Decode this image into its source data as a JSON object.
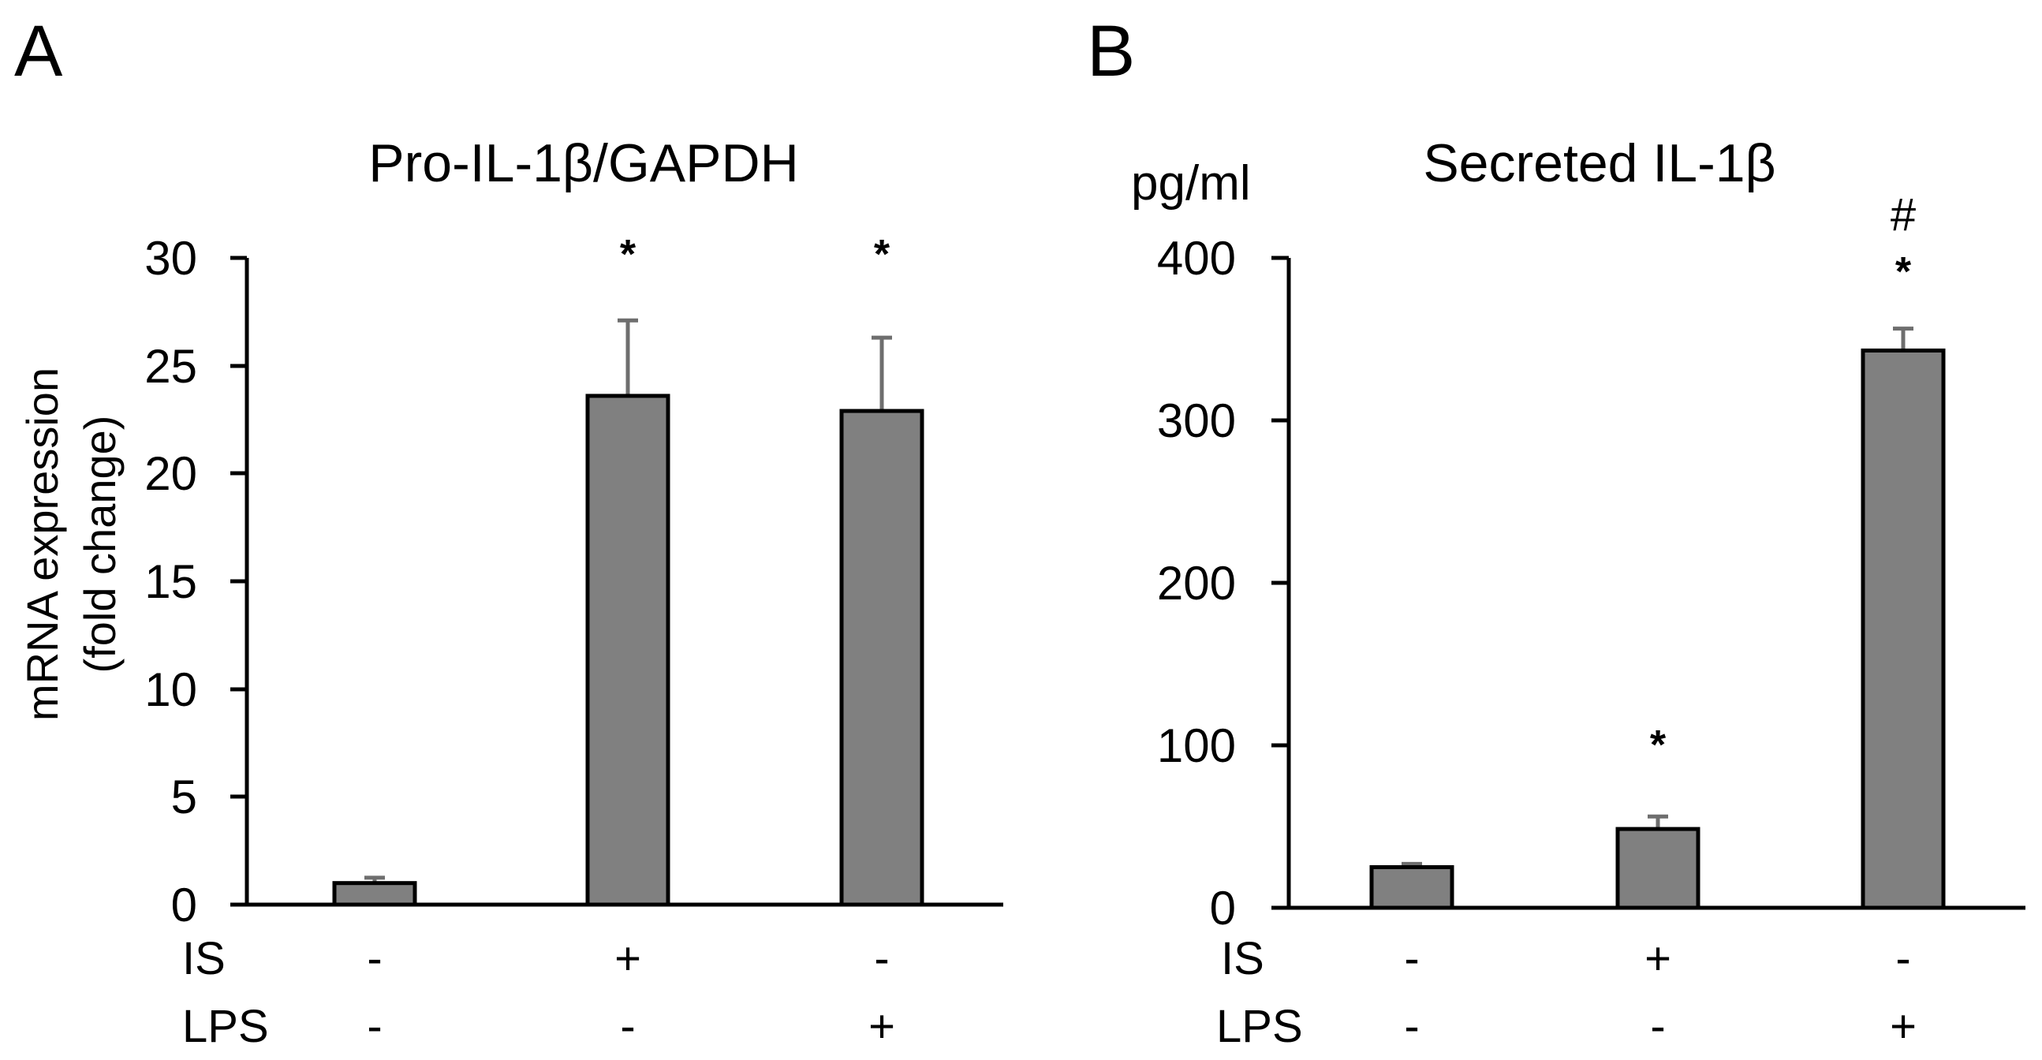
{
  "panels": [
    {
      "letter": "A",
      "title": "Pro-IL-1β/GAPDH",
      "ylabel_line1": "mRNA expression",
      "ylabel_line2": "(fold change)",
      "unit": "",
      "yticks": [
        "0",
        "5",
        "10",
        "15",
        "20",
        "25",
        "30"
      ],
      "row_labels": [
        "IS",
        "LPS"
      ],
      "groups": [
        {
          "IS": "-",
          "LPS": "-",
          "value": 1.0,
          "error": 0.25,
          "sig": ""
        },
        {
          "IS": "+",
          "LPS": "-",
          "value": 23.6,
          "error": 3.5,
          "sig": "*"
        },
        {
          "IS": "-",
          "LPS": "+",
          "value": 22.9,
          "error": 3.4,
          "sig": "*"
        }
      ]
    },
    {
      "letter": "B",
      "title": "Secreted IL-1β",
      "ylabel_line1": "",
      "ylabel_line2": "",
      "unit": "pg/ml",
      "yticks": [
        "0",
        "100",
        "200",
        "300",
        "400"
      ],
      "row_labels": [
        "IS",
        "LPS"
      ],
      "groups": [
        {
          "IS": "-",
          "LPS": "-",
          "value": 25,
          "error": 2,
          "sig": ""
        },
        {
          "IS": "+",
          "LPS": "-",
          "value": 48.5,
          "error": 7.7,
          "sig": "*"
        },
        {
          "IS": "-",
          "LPS": "+",
          "value": 343,
          "error": 13.5,
          "sig": "*",
          "sig2": "#"
        }
      ]
    }
  ],
  "colors": {
    "bar_fill": "#808080",
    "bar_stroke": "#000000",
    "error_bar": "#6e6e6e",
    "axis": "#000000",
    "background": "#ffffff"
  },
  "chart_data": [
    {
      "type": "bar",
      "title": "Pro-IL-1β/GAPDH",
      "panel": "A",
      "categories": [
        "IS- / LPS-",
        "IS+ / LPS-",
        "IS- / LPS+"
      ],
      "values": [
        1.0,
        23.6,
        22.9
      ],
      "error": [
        0.25,
        3.5,
        3.4
      ],
      "significance": [
        "",
        "*",
        "*"
      ],
      "xlabel": "",
      "ylabel": "mRNA expression (fold change)",
      "ylim": [
        0,
        30
      ],
      "yticks": [
        0,
        5,
        10,
        15,
        20,
        25,
        30
      ],
      "treatment_rows": {
        "IS": [
          "-",
          "+",
          "-"
        ],
        "LPS": [
          "-",
          "-",
          "+"
        ]
      },
      "grid": false,
      "legend": null
    },
    {
      "type": "bar",
      "title": "Secreted IL-1β",
      "panel": "B",
      "categories": [
        "IS- / LPS-",
        "IS+ / LPS-",
        "IS- / LPS+"
      ],
      "values": [
        25,
        48.5,
        343
      ],
      "error": [
        2,
        7.7,
        13.5
      ],
      "significance": [
        "",
        "*",
        "* #"
      ],
      "xlabel": "",
      "ylabel": "pg/ml",
      "ylim": [
        0,
        400
      ],
      "yticks": [
        0,
        100,
        200,
        300,
        400
      ],
      "treatment_rows": {
        "IS": [
          "-",
          "+",
          "-"
        ],
        "LPS": [
          "-",
          "-",
          "+"
        ]
      },
      "grid": false,
      "legend": null
    }
  ]
}
